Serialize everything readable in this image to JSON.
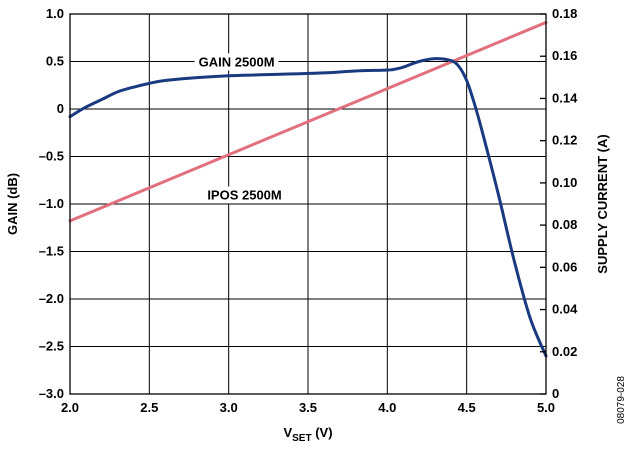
{
  "chart_data": {
    "type": "line",
    "x_axis": {
      "label_main": "V",
      "label_sub": "SET",
      "label_unit": " (V)",
      "range": [
        2.0,
        5.0
      ],
      "ticks": [
        2.0,
        2.5,
        3.0,
        3.5,
        4.0,
        4.5,
        5.0
      ],
      "tick_labels": [
        "2.0",
        "2.5",
        "3.0",
        "3.5",
        "4.0",
        "4.5",
        "5.0"
      ]
    },
    "y_left": {
      "label": "GAIN (dB)",
      "range": [
        -3.0,
        1.0
      ],
      "ticks": [
        1.0,
        0.5,
        0,
        -0.5,
        -1.0,
        -1.5,
        -2.0,
        -2.5,
        -3.0
      ],
      "tick_labels": [
        "1.0",
        "0.5",
        "0",
        "–0.5",
        "–1.0",
        "–1.5",
        "–2.0",
        "–2.5",
        "–3.0"
      ]
    },
    "y_right": {
      "label": "SUPPLY CURRENT (A)",
      "range": [
        0,
        0.18
      ],
      "ticks": [
        0.18,
        0.16,
        0.14,
        0.12,
        0.1,
        0.08,
        0.06,
        0.04,
        0.02,
        0
      ],
      "tick_labels": [
        "0.18",
        "0.16",
        "0.14",
        "0.12",
        "0.10",
        "0.08",
        "0.06",
        "0.04",
        "0.02",
        "0"
      ]
    },
    "grid": true,
    "series": [
      {
        "name": "GAIN 2500M",
        "axis": "left",
        "color": "#1a3a80",
        "x": [
          2.0,
          2.1,
          2.2,
          2.3,
          2.4,
          2.5,
          2.6,
          2.8,
          3.0,
          3.2,
          3.4,
          3.6,
          3.8,
          4.0,
          4.05,
          4.1,
          4.2,
          4.3,
          4.4,
          4.45,
          4.5,
          4.55,
          4.6,
          4.7,
          4.8,
          4.9,
          5.0
        ],
        "y": [
          -0.08,
          0.02,
          0.1,
          0.18,
          0.23,
          0.27,
          0.3,
          0.33,
          0.35,
          0.36,
          0.37,
          0.38,
          0.4,
          0.41,
          0.42,
          0.44,
          0.5,
          0.53,
          0.51,
          0.45,
          0.3,
          0.05,
          -0.25,
          -0.9,
          -1.6,
          -2.2,
          -2.6
        ]
      },
      {
        "name": "IPOS 2500M",
        "axis": "right",
        "color": "#e0707e",
        "x": [
          2.0,
          5.0
        ],
        "y": [
          0.082,
          0.176
        ]
      }
    ],
    "annotations": [
      {
        "text": "GAIN 2500M",
        "series": 0
      },
      {
        "text": "IPOS 2500M",
        "series": 1
      }
    ],
    "figure_id": "08079-028"
  }
}
